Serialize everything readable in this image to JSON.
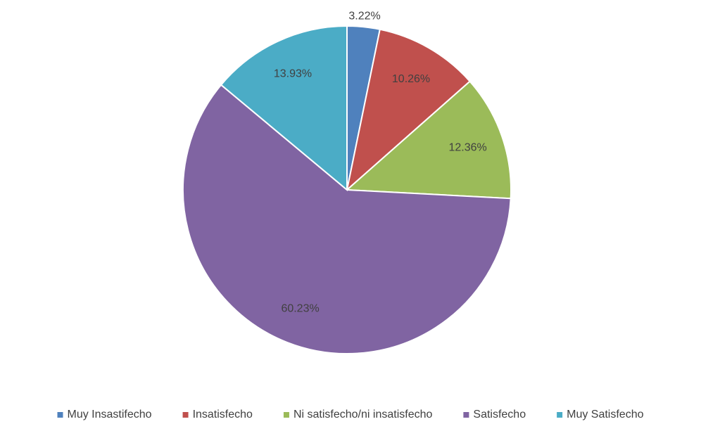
{
  "chart_data": {
    "type": "pie",
    "categories": [
      "Muy Insastifecho",
      "Insatisfecho",
      "Ni satisfecho/ni insatisfecho",
      "Satisfecho",
      "Muy Satisfecho"
    ],
    "values": [
      3.22,
      10.26,
      12.36,
      60.23,
      13.93
    ],
    "value_labels": [
      "3.22%",
      "10.26%",
      "12.36%",
      "60.23%",
      "13.93%"
    ],
    "colors": [
      "#4f81bd",
      "#c0504d",
      "#9bbb59",
      "#8064a2",
      "#4bacc6"
    ],
    "legend": "bottom"
  }
}
